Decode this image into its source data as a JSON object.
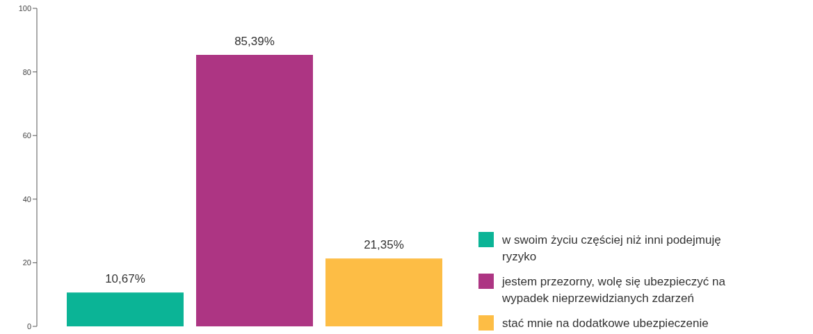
{
  "chart_data": {
    "type": "bar",
    "categories": [
      null
    ],
    "series": [
      {
        "name": "w swoim życiu częściej niż inni podejmuję ryzyko",
        "color": "#0bb496",
        "values": [
          10.67
        ],
        "value_labels": [
          "10,67%"
        ]
      },
      {
        "name": "jestem przezorny, wolę się ubezpieczyć na wypadek nieprzewidzianych zdarzeń",
        "color": "#ad3583",
        "values": [
          85.39
        ],
        "value_labels": [
          "85,39%"
        ]
      },
      {
        "name": "stać mnie na dodatkowe ubezpieczenie",
        "color": "#fdbd45",
        "values": [
          21.35
        ],
        "value_labels": [
          "21,35%"
        ]
      }
    ],
    "ylim": [
      0,
      100
    ],
    "yticks": [
      0,
      20,
      40,
      60,
      80,
      100
    ],
    "grid": false,
    "legend": "bottom right",
    "tick_labels": "y"
  }
}
